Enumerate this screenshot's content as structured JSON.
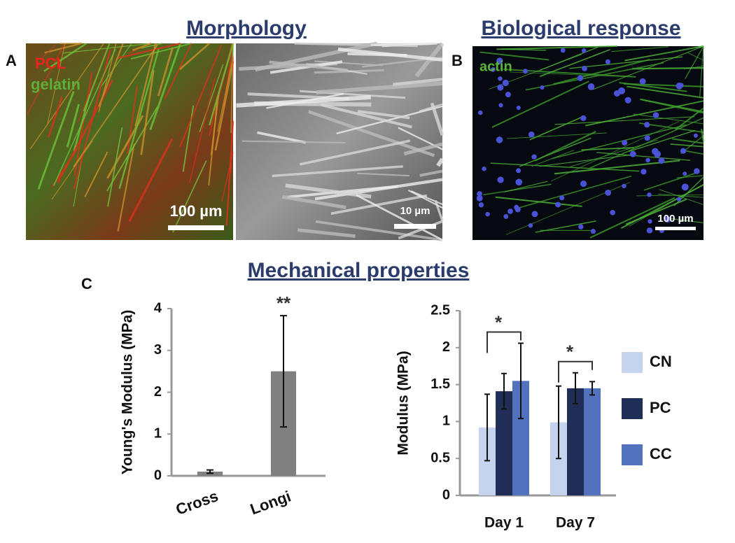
{
  "headings": {
    "morphology": "Morphology",
    "biological": "Biological response",
    "mechanical": "Mechanical properties"
  },
  "panels": {
    "A": {
      "label": "A",
      "channels": [
        "PCL",
        "gelatin"
      ],
      "scale_bars": [
        "100 µm",
        "10 µm"
      ]
    },
    "B": {
      "label": "B",
      "channels": [
        "actin"
      ],
      "scale_bars": [
        "100 µm"
      ]
    },
    "C": {
      "label": "C"
    }
  },
  "chart_data": [
    {
      "type": "bar",
      "ylabel": "Young's Modulus (MPa)",
      "categories": [
        "Cross",
        "Longi"
      ],
      "values": [
        0.1,
        2.5
      ],
      "errors": [
        0.04,
        1.33
      ],
      "color": "#808080",
      "ylim": [
        0,
        4
      ],
      "yticks": [
        0,
        1,
        2,
        3,
        4
      ],
      "annotations": [
        "**"
      ]
    },
    {
      "type": "grouped-bar",
      "ylabel": "Modulus (MPa)",
      "categories": [
        "Day 1",
        "Day 7"
      ],
      "series": [
        {
          "name": "CN",
          "color": "#c5d3ee",
          "values": [
            0.92,
            0.99
          ],
          "errors": [
            0.45,
            0.49
          ]
        },
        {
          "name": "PC",
          "color": "#1f2d57",
          "values": [
            1.41,
            1.45
          ],
          "errors": [
            0.24,
            0.21
          ]
        },
        {
          "name": "CC",
          "color": "#5272bd",
          "values": [
            1.55,
            1.45
          ],
          "errors": [
            0.51,
            0.09
          ]
        }
      ],
      "ylim": [
        0,
        2.5
      ],
      "yticks": [
        0,
        0.5,
        1,
        1.5,
        2,
        2.5
      ],
      "annotations": [
        "*",
        "*"
      ],
      "legend": "right"
    }
  ]
}
